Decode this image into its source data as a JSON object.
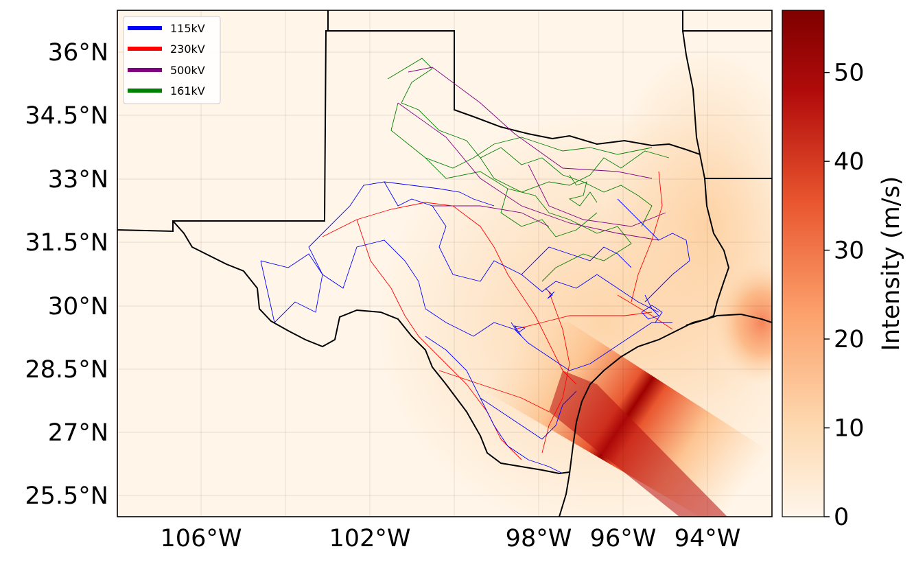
{
  "map": {
    "lat_ticks": [
      "36°N",
      "34.5°N",
      "33°N",
      "31.5°N",
      "30°N",
      "28.5°N",
      "27°N",
      "25.5°N"
    ],
    "lon_ticks": [
      "106°W",
      "102°W",
      "98°W",
      "96°W",
      "94°W"
    ],
    "legend": [
      {
        "label": "115kV",
        "color": "#0000ff"
      },
      {
        "label": "230kV",
        "color": "#ff0000"
      },
      {
        "label": "500kV",
        "color": "#800080"
      },
      {
        "label": "161kV",
        "color": "#008000"
      }
    ],
    "colorbar": {
      "label": "Intensity (m/s)",
      "ticks": [
        "0",
        "10",
        "20",
        "30",
        "40",
        "50"
      ],
      "max_value": 57
    },
    "background_color": "#fff5e8",
    "colormap": [
      "#fff5eb",
      "#fdd9b0",
      "#fca16c",
      "#e9562f",
      "#b10b0b",
      "#7f0000"
    ]
  }
}
